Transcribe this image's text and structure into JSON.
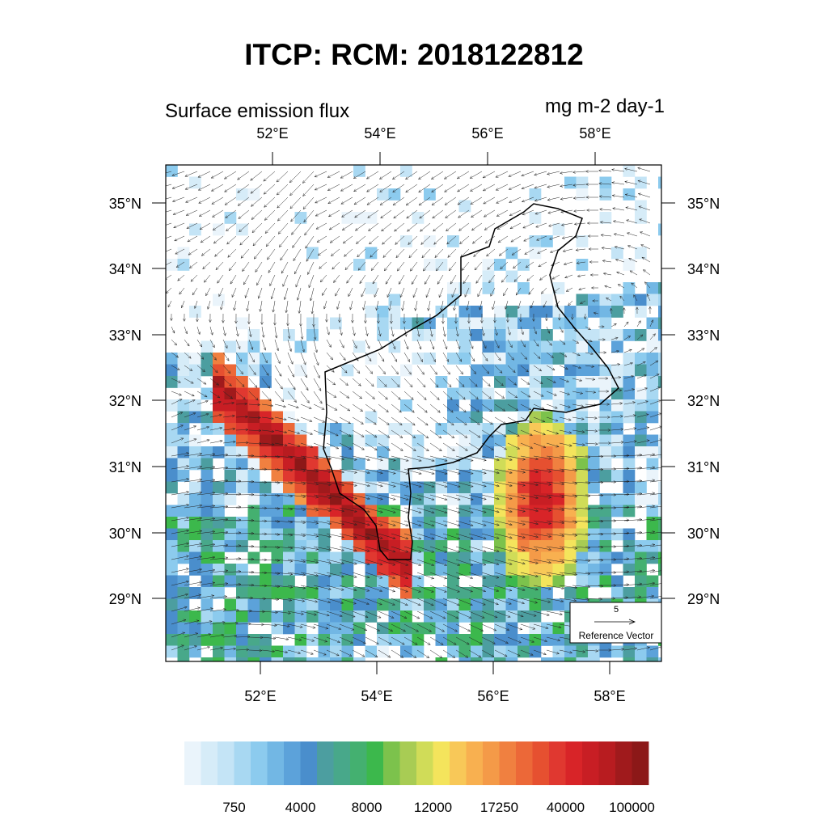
{
  "title": "ITCP: RCM: 2018122812",
  "left_subtitle": "Surface emission flux",
  "right_subtitle": "mg m-2 day-1",
  "map": {
    "top_lon_labels": [
      "52°E",
      "54°E",
      "56°E",
      "58°E"
    ],
    "bottom_lon_labels": [
      "52°E",
      "54°E",
      "56°E",
      "58°E"
    ],
    "left_lat_labels": [
      "35°N",
      "34°N",
      "33°N",
      "32°N",
      "31°N",
      "30°N",
      "29°N"
    ],
    "right_lat_labels": [
      "35°N",
      "34°N",
      "33°N",
      "32°N",
      "31°N",
      "30°N",
      "29°N"
    ]
  },
  "reference_vector": {
    "magnitude": "5",
    "label": "Reference Vector"
  },
  "colorbar": {
    "colors": [
      "#eaf4fb",
      "#d6ecf8",
      "#c4e4f6",
      "#a8d8f2",
      "#8ccbee",
      "#72b7e4",
      "#5ca2da",
      "#4a8ecc",
      "#4c9ea0",
      "#48a88a",
      "#44b070",
      "#3cb84c",
      "#7cc24c",
      "#a8cc54",
      "#d0dc58",
      "#f4e45c",
      "#f8c858",
      "#f8b050",
      "#f49a48",
      "#f08040",
      "#ec6838",
      "#e65030",
      "#e03830",
      "#d82428",
      "#c81e24",
      "#b81c20",
      "#a01a1c",
      "#8c1818"
    ],
    "labels": [
      750,
      4000,
      8000,
      12000,
      17250,
      40000,
      100000
    ]
  }
}
